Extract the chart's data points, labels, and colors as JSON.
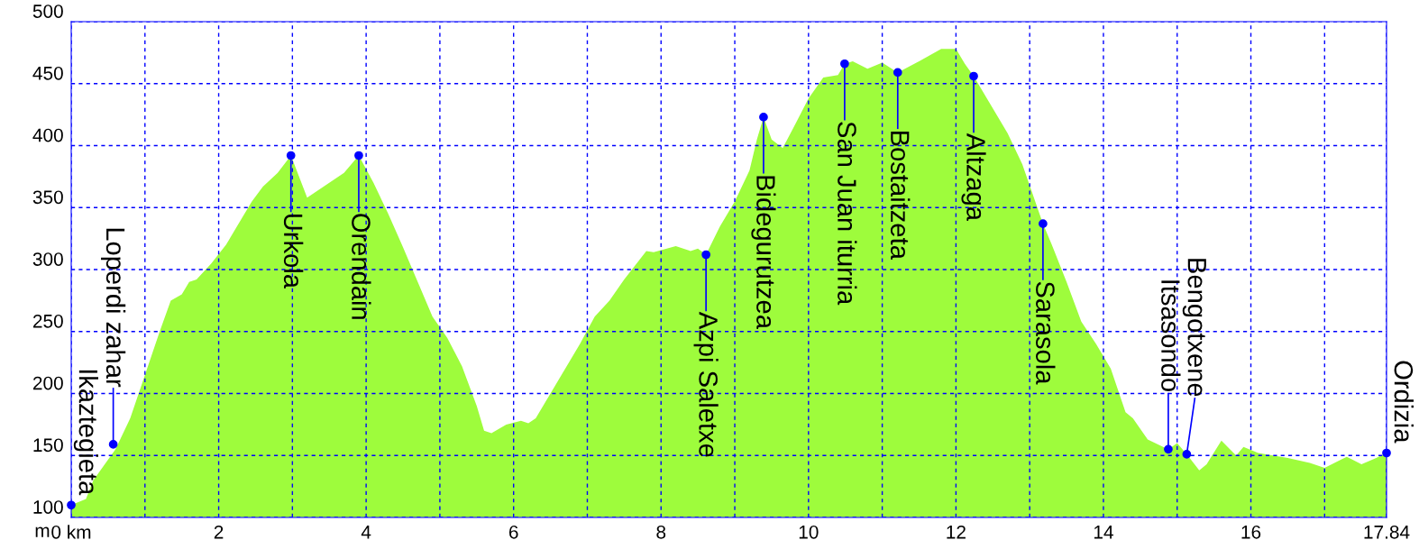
{
  "chart_data": {
    "type": "area",
    "ylabel": "m",
    "color": "#9efc3c",
    "x": [
      0,
      0.2,
      0.3,
      0.6,
      0.8,
      1.0,
      1.2,
      1.35,
      1.5,
      1.6,
      1.7,
      1.9,
      2.1,
      2.3,
      2.45,
      2.6,
      2.8,
      2.98,
      3.2,
      3.5,
      3.7,
      3.9,
      4.1,
      4.3,
      4.5,
      4.7,
      4.9,
      5.1,
      5.3,
      5.5,
      5.6,
      5.7,
      5.9,
      6.1,
      6.2,
      6.3,
      6.5,
      6.7,
      6.9,
      7.1,
      7.3,
      7.5,
      7.8,
      7.9,
      8.2,
      8.4,
      8.5,
      8.61,
      8.8,
      9.0,
      9.2,
      9.3,
      9.39,
      9.5,
      9.65,
      9.8,
      10.0,
      10.2,
      10.4,
      10.49,
      10.6,
      10.8,
      11.0,
      11.21,
      11.5,
      11.8,
      12.0,
      12.12,
      12.24,
      12.5,
      12.7,
      12.9,
      13.18,
      13.3,
      13.5,
      13.7,
      13.9,
      14.1,
      14.3,
      14.4,
      14.6,
      14.88,
      15.0,
      15.13,
      15.3,
      15.4,
      15.6,
      15.8,
      15.9,
      16.1,
      16.5,
      16.8,
      17.0,
      17.3,
      17.5,
      17.7,
      17.84
    ],
    "values": [
      110,
      115,
      130,
      155,
      180,
      215,
      250,
      275,
      280,
      290,
      292,
      305,
      320,
      340,
      355,
      367,
      378,
      392,
      358,
      370,
      378,
      392,
      370,
      345,
      318,
      290,
      262,
      245,
      222,
      190,
      170,
      168,
      175,
      178,
      176,
      180,
      200,
      220,
      240,
      262,
      275,
      292,
      315,
      314,
      319,
      315,
      317,
      312,
      335,
      355,
      380,
      405,
      423,
      405,
      398,
      415,
      438,
      455,
      457,
      466,
      468,
      462,
      467,
      459,
      468,
      478,
      478,
      466,
      456,
      430,
      410,
      385,
      337,
      320,
      290,
      258,
      240,
      220,
      185,
      180,
      163,
      155,
      160,
      151,
      138,
      143,
      162,
      150,
      157,
      152,
      148,
      144,
      140,
      149,
      143,
      148,
      152
    ],
    "xlim": [
      0,
      17.84
    ],
    "xticks": [
      {
        "value": 0,
        "label": "0 km"
      },
      {
        "value": 1,
        "label": null
      },
      2,
      {
        "value": 3,
        "label": null
      },
      4,
      {
        "value": 5,
        "label": null
      },
      6,
      {
        "value": 7,
        "label": null
      },
      8,
      {
        "value": 9,
        "label": null
      },
      10,
      {
        "value": 11,
        "label": null
      },
      12,
      {
        "value": 13,
        "label": null
      },
      14,
      {
        "value": 15,
        "label": null
      },
      16,
      {
        "value": 17,
        "label": null
      },
      17.84
    ],
    "ylim": [
      100,
      500
    ],
    "yticks": [
      100,
      150,
      200,
      250,
      300,
      350,
      400,
      450,
      500
    ],
    "grid": true,
    "annotations": [
      {
        "text": "Ikaztegieta",
        "x": 0,
        "y": 110
      },
      {
        "text": "Loperdi zahar",
        "x": 0.57,
        "y": 159
      },
      {
        "text": "Urkola",
        "x": 2.98,
        "y": 392
      },
      {
        "text": "Orendain",
        "x": 3.9,
        "y": 392
      },
      {
        "text": "Azpi Saletxe",
        "x": 8.61,
        "y": 312
      },
      {
        "text": "Bidegurutzea",
        "x": 9.39,
        "y": 423
      },
      {
        "text": "San Juan iturria",
        "x": 10.49,
        "y": 466
      },
      {
        "text": "Bostaitzeta",
        "x": 11.21,
        "y": 459
      },
      {
        "text": "Altzaga",
        "x": 12.24,
        "y": 456
      },
      {
        "text": "Sarasola",
        "x": 13.18,
        "y": 337
      },
      {
        "text": "Itsasondo",
        "x": 14.88,
        "y": 155
      },
      {
        "text": "Bengotxene",
        "x": 15.13,
        "y": 151
      },
      {
        "text": "Ordizia",
        "x": 17.84,
        "y": 152
      }
    ]
  }
}
